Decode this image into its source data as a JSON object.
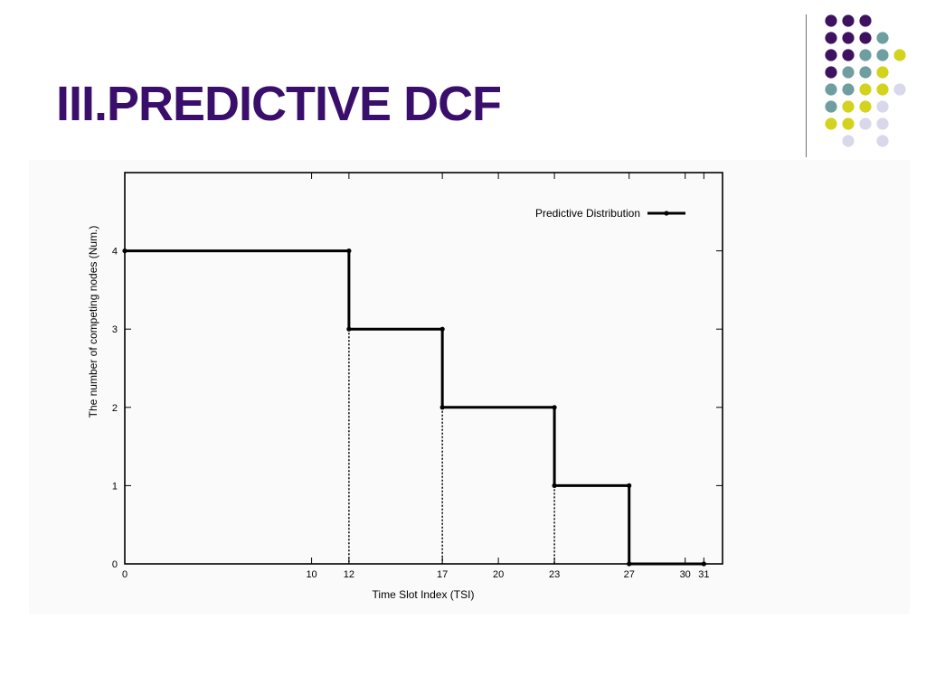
{
  "slide": {
    "title": "III.PREDICTIVE DCF",
    "decoration": {
      "palette": {
        "purple": "#3e1261",
        "teal": "#6f9ea0",
        "yellow": "#d3d21c",
        "lavender": "#d9d8ea"
      },
      "dot_grid": [
        [
          null,
          "purple",
          "purple",
          "purple",
          null
        ],
        [
          null,
          "purple",
          "purple",
          "purple",
          "teal"
        ],
        [
          null,
          "purple",
          "purple",
          "teal",
          "teal",
          "yellow"
        ],
        [
          null,
          "purple",
          "teal",
          "teal",
          "yellow"
        ],
        [
          null,
          "teal",
          "teal",
          "yellow",
          "yellow",
          "lavender"
        ],
        [
          null,
          "teal",
          "yellow",
          "yellow",
          "lavender"
        ],
        [
          null,
          "yellow",
          "yellow",
          "lavender",
          "lavender"
        ],
        [
          null,
          null,
          "lavender",
          null,
          "lavender"
        ]
      ]
    }
  },
  "chart_data": {
    "type": "line",
    "step": true,
    "xlabel": "Time Slot Index (TSI)",
    "ylabel": "The number of competing nodes (Num.)",
    "xlim": [
      0,
      32
    ],
    "ylim": [
      0,
      5
    ],
    "x_ticks": [
      0,
      10,
      12,
      17,
      20,
      23,
      27,
      30,
      31
    ],
    "y_ticks": [
      0,
      1,
      2,
      3,
      4
    ],
    "legend_position": "top-right",
    "grid": false,
    "series": [
      {
        "name": "Predictive Distribution",
        "x": [
          0,
          12,
          12,
          17,
          17,
          23,
          23,
          27,
          27,
          31
        ],
        "y": [
          4,
          4,
          3,
          3,
          2,
          2,
          1,
          1,
          0,
          0
        ]
      }
    ],
    "dotted_drop_lines": [
      {
        "x": 12,
        "y": 3
      },
      {
        "x": 17,
        "y": 2
      },
      {
        "x": 23,
        "y": 1
      },
      {
        "x": 27,
        "y": 0
      }
    ]
  }
}
